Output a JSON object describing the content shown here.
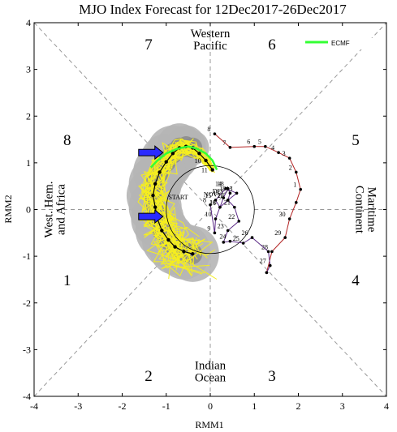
{
  "chart_data": {
    "type": "scatter",
    "title": "MJO Index Forecast for 12Dec2017-26Dec2017",
    "xlabel": "RMM1",
    "ylabel": "RMM2",
    "xlim": [
      -4,
      4
    ],
    "ylim": [
      -4,
      4
    ],
    "x_ticks": [
      "-4",
      "-3",
      "-2",
      "-1",
      "0",
      "1",
      "2",
      "3",
      "4"
    ],
    "y_ticks": [
      "-4",
      "-3",
      "-2",
      "-1",
      "0",
      "1",
      "2",
      "3",
      "4"
    ],
    "grid": false,
    "legend": {
      "position": "top-right",
      "entries": [
        {
          "name": "ECMF",
          "color": "#33ff33"
        }
      ]
    },
    "phase_labels": [
      {
        "phase": "1",
        "x": -3.25,
        "y": -1.5
      },
      {
        "phase": "2",
        "x": -1.4,
        "y": -3.55
      },
      {
        "phase": "3",
        "x": 1.4,
        "y": -3.55
      },
      {
        "phase": "4",
        "x": 3.3,
        "y": -1.5
      },
      {
        "phase": "5",
        "x": 3.3,
        "y": 1.5
      },
      {
        "phase": "6",
        "x": 1.4,
        "y": 3.55
      },
      {
        "phase": "7",
        "x": -1.4,
        "y": 3.55
      },
      {
        "phase": "8",
        "x": -3.25,
        "y": 1.5
      }
    ],
    "regions": [
      {
        "lines": [
          "Western",
          "Pacific"
        ],
        "x": 0,
        "y": 3.65,
        "rotate": 0
      },
      {
        "lines": [
          "Indian",
          "Ocean"
        ],
        "x": 0,
        "y": -3.45,
        "rotate": 0
      },
      {
        "lines": [
          "West. Hem.",
          "and Africa"
        ],
        "x": -3.55,
        "y": 0,
        "rotate": -90
      },
      {
        "lines": [
          "Maritime",
          "Continent"
        ],
        "x": 3.55,
        "y": 0,
        "rotate": 90
      }
    ],
    "observed_nov": {
      "color": "#b22222",
      "x": [
        0.1,
        0.45,
        1.0,
        1.25,
        1.55,
        1.8,
        1.95,
        2.05,
        1.95,
        1.8,
        1.7,
        1.4,
        1.28
      ],
      "y": [
        1.62,
        1.33,
        1.35,
        1.35,
        1.22,
        1.1,
        0.8,
        0.43,
        0.15,
        -0.2,
        -0.6,
        -0.9,
        -1.35
      ],
      "labels": [
        "8",
        "7",
        "6",
        "5",
        "4",
        "3",
        "2",
        "1",
        "",
        "30",
        "29",
        "28",
        ""
      ]
    },
    "observed_dec": {
      "color": "#5b2a86",
      "x": [
        1.28,
        1.36,
        1.32,
        0.95,
        0.75,
        0.45,
        0.3,
        0.4,
        0.65,
        0.55,
        0.4,
        0.45,
        0.4,
        0.3,
        0.22,
        0.12,
        0.35,
        0.6,
        0.4,
        0.22,
        0.12,
        0.1,
        0.0
      ],
      "y": [
        -1.35,
        -1.2,
        -0.9,
        -0.6,
        -0.72,
        -0.68,
        -0.7,
        -0.45,
        -0.25,
        0.05,
        0.2,
        0.35,
        0.45,
        0.25,
        0.05,
        0.2,
        0.45,
        0.35,
        0.2,
        0.05,
        -0.2,
        -0.5,
        0.1
      ],
      "labels": [
        "",
        "27",
        "",
        "26",
        "25",
        "24",
        "",
        "23",
        "22",
        "21",
        "20",
        "19",
        "18",
        "17",
        "16",
        "15",
        "14",
        "13",
        "12",
        "11",
        "10",
        "9",
        "8"
      ]
    },
    "forecast_ensemble_mean": {
      "color": "#000000",
      "x": [
        0.05,
        -0.1,
        -0.25,
        -0.4,
        -0.55,
        -0.7,
        -0.85,
        -1.0,
        -1.15,
        -1.25,
        -1.3,
        -1.25,
        -1.2,
        -1.1,
        -0.95,
        -0.8,
        -0.6,
        -0.4
      ],
      "y": [
        0.85,
        1.05,
        1.2,
        1.32,
        1.35,
        1.32,
        1.2,
        1.02,
        0.8,
        0.55,
        0.3,
        0.05,
        -0.2,
        -0.45,
        -0.65,
        -0.8,
        -0.9,
        -0.95
      ],
      "labels": [
        "11",
        "10",
        "",
        "",
        "",
        "",
        "",
        "",
        "",
        "",
        "",
        "",
        "",
        "",
        "",
        "",
        "",
        ""
      ]
    },
    "forecast_ecmf": {
      "color": "#33ff33",
      "x": [
        0.15,
        0.05,
        -0.1,
        -0.3,
        -0.5,
        -0.75,
        -1.0,
        -1.2,
        -1.35
      ],
      "y": [
        0.85,
        1.05,
        1.2,
        1.3,
        1.35,
        1.3,
        1.2,
        1.05,
        0.9
      ]
    },
    "annotations": [
      "START",
      "NOV",
      "DEC"
    ],
    "arrows": [
      {
        "x": -1.35,
        "y": 1.22,
        "direction": "right"
      },
      {
        "x": -1.35,
        "y": -0.15,
        "direction": "right"
      }
    ]
  }
}
